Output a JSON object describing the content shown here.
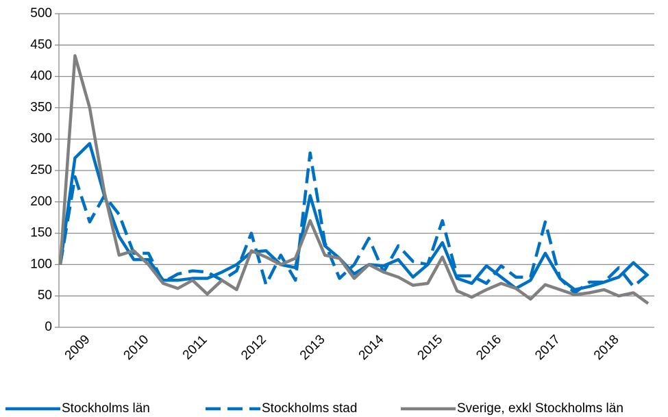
{
  "chart_data": {
    "type": "line",
    "categories": [
      null,
      "2009",
      null,
      null,
      null,
      "2010",
      null,
      null,
      null,
      "2011",
      null,
      null,
      null,
      "2012",
      null,
      null,
      null,
      "2013",
      null,
      null,
      null,
      "2014",
      null,
      null,
      null,
      "2015",
      null,
      null,
      null,
      "2016",
      null,
      null,
      null,
      "2017",
      null,
      null,
      null,
      "2018",
      null,
      null,
      null
    ],
    "series": [
      {
        "name": "Stockholms län",
        "color": "#0070c0",
        "dash": false,
        "values": [
          100,
          270,
          293,
          210,
          145,
          108,
          108,
          75,
          75,
          78,
          78,
          88,
          100,
          120,
          122,
          100,
          95,
          210,
          130,
          110,
          85,
          100,
          98,
          108,
          80,
          100,
          135,
          78,
          70,
          98,
          80,
          62,
          75,
          118,
          78,
          60,
          65,
          72,
          80,
          103,
          82
        ]
      },
      {
        "name": "Stockholms stad",
        "color": "#0070c0",
        "dash": true,
        "values": [
          100,
          240,
          168,
          210,
          180,
          118,
          118,
          72,
          85,
          90,
          88,
          75,
          90,
          150,
          68,
          115,
          75,
          278,
          135,
          78,
          100,
          142,
          88,
          130,
          105,
          100,
          170,
          82,
          82,
          70,
          98,
          80,
          80,
          168,
          78,
          55,
          72,
          72,
          95,
          65,
          85
        ]
      },
      {
        "name": "Sverige, exkl Stockholms län",
        "color": "#808080",
        "dash": false,
        "values": [
          100,
          433,
          350,
          215,
          115,
          122,
          100,
          70,
          62,
          75,
          53,
          75,
          60,
          122,
          112,
          100,
          110,
          170,
          115,
          110,
          78,
          100,
          88,
          80,
          67,
          70,
          112,
          58,
          48,
          60,
          70,
          62,
          45,
          68,
          60,
          52,
          55,
          60,
          50,
          55,
          38
        ]
      }
    ],
    "ylim": [
      0,
      500
    ],
    "yticks": [
      0,
      50,
      100,
      150,
      200,
      250,
      300,
      350,
      400,
      450,
      500
    ],
    "grid": true,
    "legend": "bottom"
  }
}
